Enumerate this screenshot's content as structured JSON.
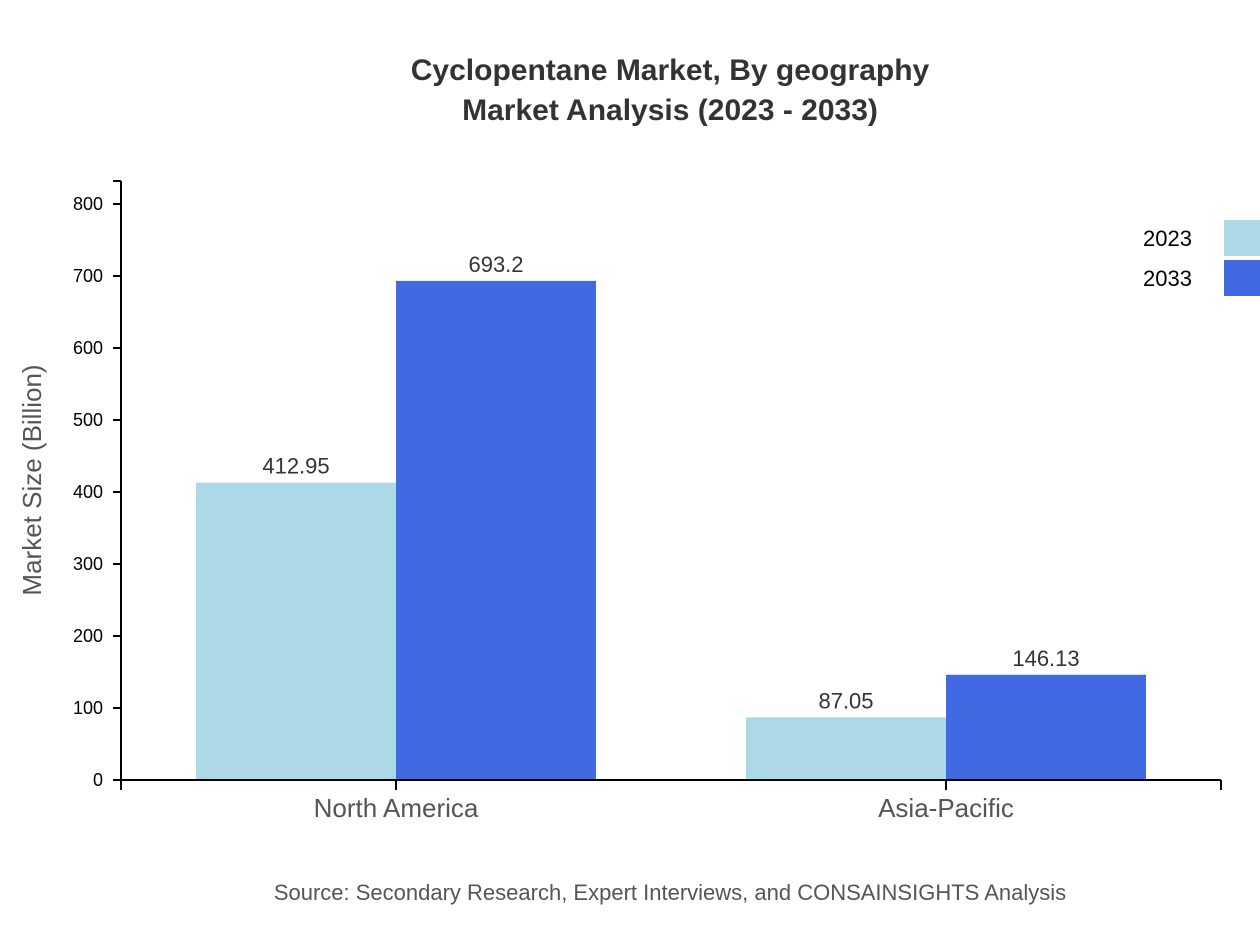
{
  "chart_data": {
    "type": "bar",
    "title": "Cyclopentane Market, By geography",
    "subtitle": "Market Analysis (2023 - 2033)",
    "xlabel": "",
    "ylabel": "Market Size (Billion)",
    "ylim": [
      0,
      800
    ],
    "yticks": [
      0,
      100,
      200,
      300,
      400,
      500,
      600,
      700,
      800
    ],
    "categories": [
      "North America",
      "Asia-Pacific"
    ],
    "series": [
      {
        "name": "2023",
        "color": "#add8e6",
        "values": [
          412.95,
          87.05
        ],
        "labels": [
          "412.95",
          "87.05"
        ]
      },
      {
        "name": "2033",
        "color": "#4169e1",
        "values": [
          693.2,
          146.13
        ],
        "labels": [
          "693.2",
          "146.13"
        ]
      }
    ],
    "grid": false,
    "legend": "top-right",
    "source": "Source: Secondary Research, Expert Interviews, and CONSAINSIGHTS Analysis"
  }
}
